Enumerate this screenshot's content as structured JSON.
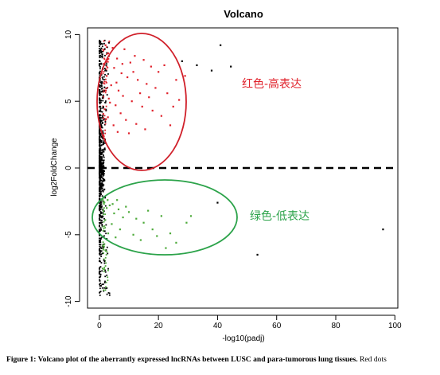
{
  "chart_data": {
    "type": "scatter",
    "title": "Volcano",
    "xlabel": "-log10(padj)",
    "ylabel": "log2FoldChange",
    "xlim": [
      -4,
      101
    ],
    "ylim": [
      -10.5,
      10.5
    ],
    "x_ticks": [
      0,
      20,
      40,
      60,
      80,
      100
    ],
    "y_ticks": [
      -10,
      -5,
      0,
      5,
      10
    ],
    "reference_line": {
      "y": 0,
      "style": "dashed"
    },
    "grid": false,
    "colors": {
      "up": "#e0202a",
      "down": "#4daa3a",
      "ns": "#000000",
      "up_ellipse": "#d0202a",
      "down_ellipse": "#2ca34a"
    },
    "annotations": [
      {
        "text": "红色-高表达",
        "color": "#e0202a"
      },
      {
        "text": "绿色-低表达",
        "color": "#2ca34a"
      }
    ],
    "series": [
      {
        "group": "up",
        "points": [
          [
            2.1,
            9.2
          ],
          [
            3.0,
            8.6
          ],
          [
            4.5,
            9.0
          ],
          [
            6.0,
            8.2
          ],
          [
            8.5,
            8.9
          ],
          [
            10.5,
            7.9
          ],
          [
            12.0,
            8.4
          ],
          [
            15.0,
            8.1
          ],
          [
            17.5,
            7.6
          ],
          [
            22.0,
            7.7
          ],
          [
            5.0,
            7.5
          ],
          [
            7.5,
            7.1
          ],
          [
            9.5,
            6.8
          ],
          [
            13.0,
            6.6
          ],
          [
            16.0,
            6.3
          ],
          [
            19.0,
            6.0
          ],
          [
            23.0,
            5.6
          ],
          [
            27.0,
            5.1
          ],
          [
            2.5,
            6.9
          ],
          [
            4.0,
            6.2
          ],
          [
            6.5,
            5.8
          ],
          [
            8.0,
            5.4
          ],
          [
            11.0,
            5.0
          ],
          [
            14.5,
            4.6
          ],
          [
            18.0,
            4.3
          ],
          [
            21.0,
            3.9
          ],
          [
            25.0,
            4.6
          ],
          [
            3.2,
            5.2
          ],
          [
            5.5,
            4.7
          ],
          [
            7.2,
            4.1
          ],
          [
            9.0,
            3.6
          ],
          [
            12.5,
            3.3
          ],
          [
            1.8,
            4.4
          ],
          [
            2.9,
            3.8
          ],
          [
            4.8,
            3.2
          ],
          [
            6.2,
            2.7
          ],
          [
            10.0,
            2.6
          ],
          [
            15.5,
            2.9
          ],
          [
            1.5,
            7.8
          ],
          [
            2.2,
            5.8
          ],
          [
            3.6,
            4.9
          ],
          [
            5.8,
            6.4
          ],
          [
            7.8,
            7.8
          ],
          [
            11.5,
            7.2
          ],
          [
            13.8,
            5.6
          ],
          [
            20.0,
            7.2
          ],
          [
            26.0,
            6.6
          ],
          [
            29.0,
            6.9
          ],
          [
            16.8,
            5.3
          ],
          [
            24.0,
            3.2
          ]
        ]
      },
      {
        "group": "down",
        "points": [
          [
            1.5,
            -2.6
          ],
          [
            2.5,
            -3.0
          ],
          [
            3.5,
            -2.8
          ],
          [
            5.0,
            -3.4
          ],
          [
            6.5,
            -3.1
          ],
          [
            8.0,
            -3.7
          ],
          [
            2.0,
            -3.9
          ],
          [
            4.2,
            -4.2
          ],
          [
            7.0,
            -4.6
          ],
          [
            10.0,
            -3.3
          ],
          [
            12.5,
            -3.8
          ],
          [
            15.0,
            -4.1
          ],
          [
            18.0,
            -4.6
          ],
          [
            21.0,
            -3.6
          ],
          [
            24.0,
            -4.9
          ],
          [
            26.0,
            -5.6
          ],
          [
            29.5,
            -4.1
          ],
          [
            31.0,
            -3.6
          ],
          [
            9.0,
            -2.9
          ],
          [
            11.5,
            -5.0
          ],
          [
            14.0,
            -5.4
          ],
          [
            3.0,
            -4.9
          ],
          [
            5.5,
            -5.2
          ],
          [
            16.5,
            -3.2
          ],
          [
            19.5,
            -5.1
          ],
          [
            22.5,
            -6.0
          ],
          [
            1.2,
            -2.3
          ],
          [
            2.8,
            -2.4
          ],
          [
            4.5,
            -2.7
          ],
          [
            6.0,
            -2.4
          ]
        ]
      },
      {
        "group": "ns",
        "points": [
          [
            28.0,
            8.0
          ],
          [
            33.0,
            7.7
          ],
          [
            38.0,
            7.3
          ],
          [
            41.0,
            9.2
          ],
          [
            44.5,
            7.6
          ],
          [
            96.0,
            -4.6
          ],
          [
            53.5,
            -6.5
          ],
          [
            40.0,
            -2.6
          ]
        ]
      }
    ]
  },
  "caption": {
    "prefix": "Figure 1: Volcano plot of the aberrantly expressed lncRNAs between LUSC and para-tumorous lung tissues.",
    "suffix": " Red dots"
  }
}
